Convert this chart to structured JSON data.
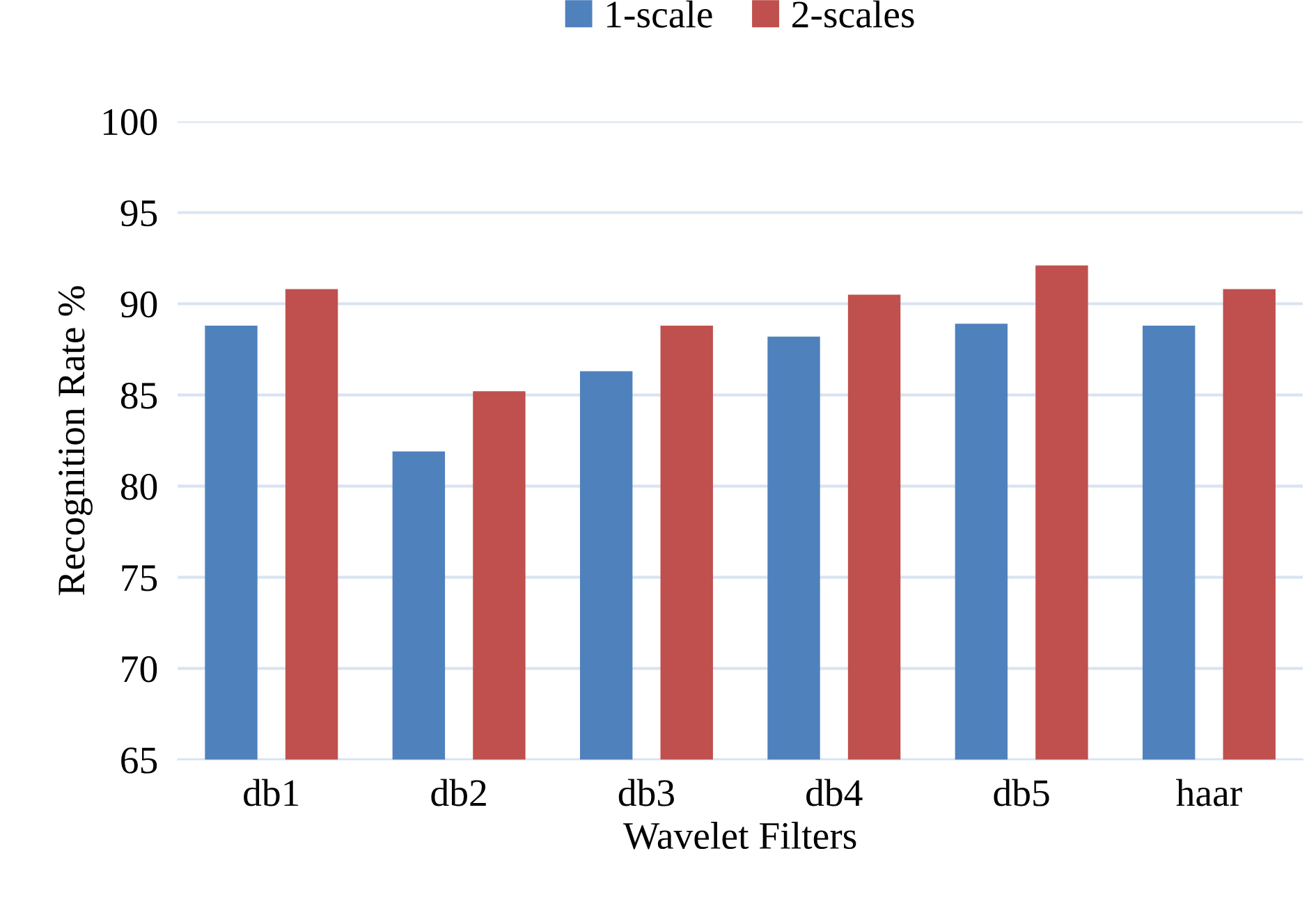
{
  "chart_data": {
    "type": "bar",
    "xlabel": "Wavelet Filters",
    "ylabel": "Recognition Rate %",
    "categories": [
      "db1",
      "db2",
      "db3",
      "db4",
      "db5",
      "haar"
    ],
    "series": [
      {
        "name": "1-scale",
        "color": "#4f81bd",
        "values": [
          88.8,
          81.9,
          86.3,
          88.2,
          88.9,
          88.8
        ]
      },
      {
        "name": "2-scales",
        "color": "#c0504d",
        "values": [
          90.8,
          85.2,
          88.8,
          90.5,
          92.1,
          90.8
        ]
      }
    ],
    "ylim": [
      65,
      100
    ],
    "yticks": [
      65,
      70,
      75,
      80,
      85,
      90,
      95,
      100
    ],
    "grid": "y",
    "legend": "top"
  }
}
